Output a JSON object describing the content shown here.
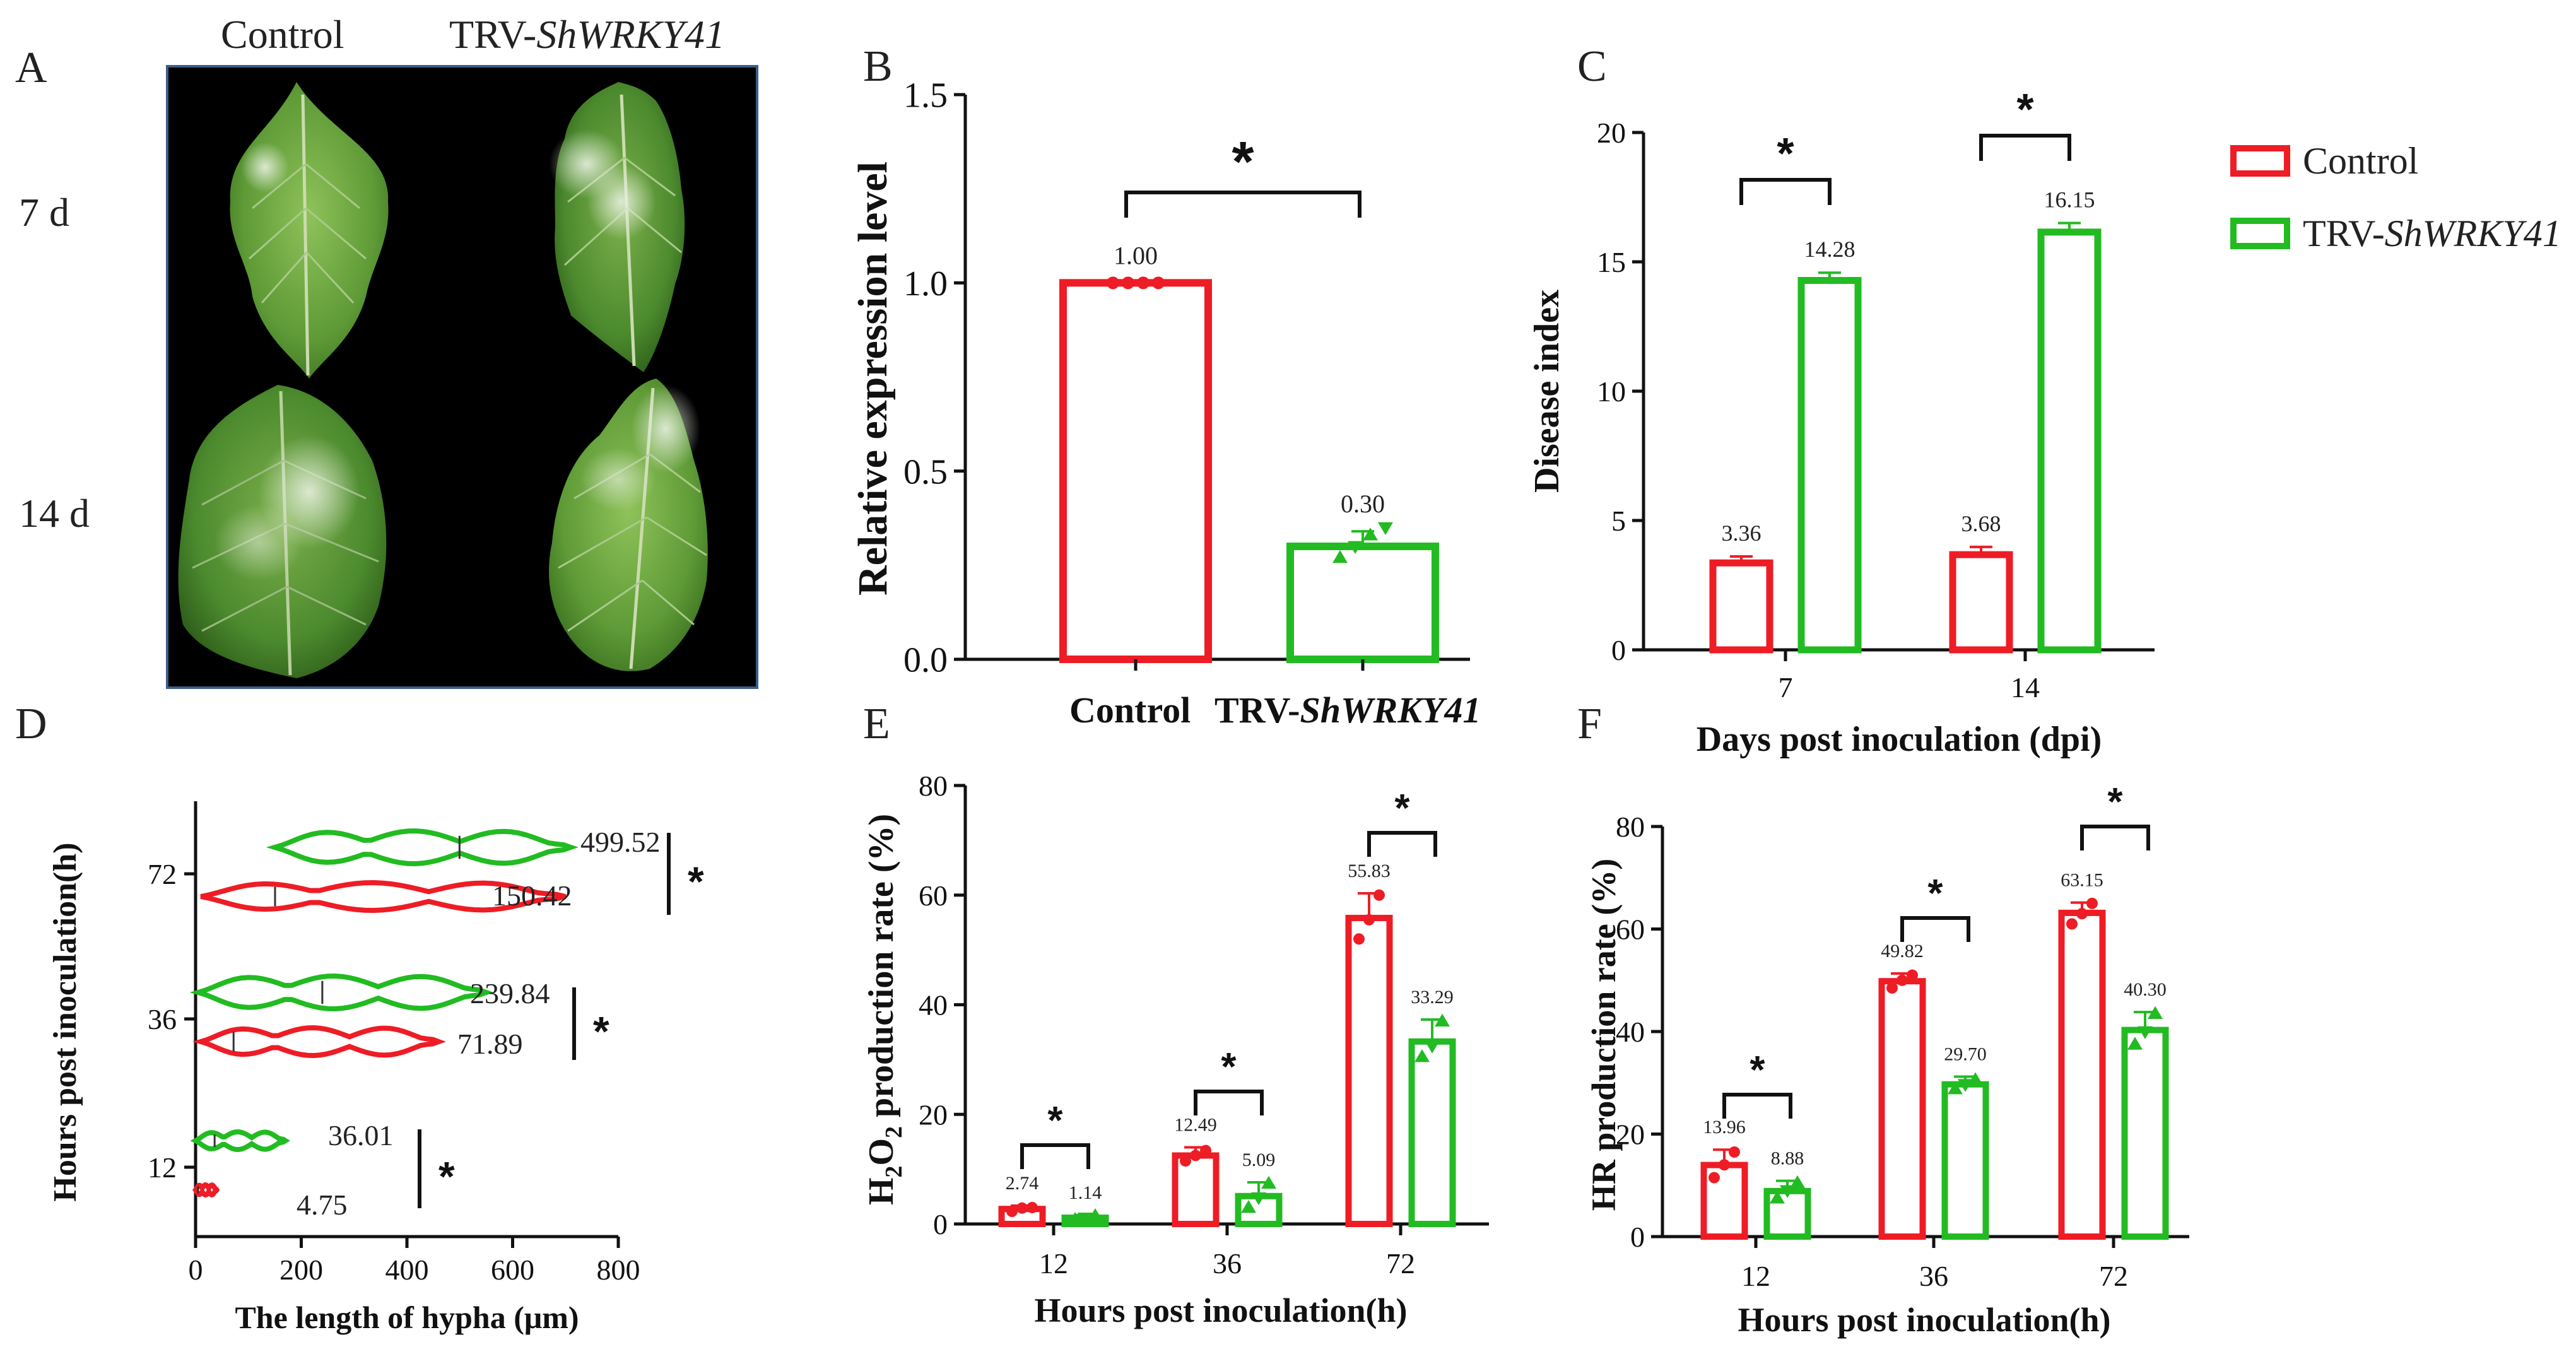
{
  "colors": {
    "control": "#ee1c25",
    "trv": "#22bb22",
    "axis": "#111111",
    "photo_bg": "#000000",
    "photo_border": "#3a5f8a"
  },
  "legend": {
    "items": [
      {
        "label": "Control",
        "italic_part": ""
      },
      {
        "label": "TRV-",
        "italic_part": "ShWRKY41"
      }
    ]
  },
  "panel_a": {
    "letter": "A",
    "col_labels": [
      "Control",
      "TRV-"
    ],
    "col_label_italic": "ShWRKY41",
    "row_labels": [
      "7 d",
      "14 d"
    ]
  },
  "panel_letters": {
    "b": "B",
    "c": "C",
    "d": "D",
    "e": "E",
    "f": "F"
  },
  "chart_data": [
    {
      "panel": "B",
      "type": "bar",
      "categories": [
        "Control",
        "TRV-ShWRKY41"
      ],
      "category_labels": [
        "Control",
        "TRV-",
        "ShWRKY41"
      ],
      "values": [
        1.0,
        0.3
      ],
      "value_labels": [
        "1.00",
        "0.30"
      ],
      "errors": [
        0.0,
        0.04
      ],
      "points": [
        [
          1.0,
          1.0,
          1.0,
          1.0
        ],
        [
          0.27,
          0.3,
          0.33,
          0.35
        ]
      ],
      "ylabel": "Relative expression level",
      "ylim": [
        0,
        1.5
      ],
      "yticks": [
        "0.0",
        "0.5",
        "1.0",
        "1.5"
      ],
      "significance": "*"
    },
    {
      "panel": "C",
      "type": "bar",
      "categories": [
        "7",
        "14"
      ],
      "series": [
        {
          "name": "Control",
          "values": [
            3.36,
            3.68
          ],
          "errors": [
            0.25,
            0.3
          ]
        },
        {
          "name": "TRV-ShWRKY41",
          "values": [
            14.28,
            16.15
          ],
          "errors": [
            0.3,
            0.35
          ]
        }
      ],
      "value_labels": [
        [
          "3.36",
          "3.68"
        ],
        [
          "14.28",
          "16.15"
        ]
      ],
      "xlabel": "Days post inoculation (dpi)",
      "ylabel": "Disease index",
      "ylim": [
        0,
        20
      ],
      "yticks": [
        "0",
        "5",
        "10",
        "15",
        "20"
      ],
      "significance": [
        "*",
        "*"
      ]
    },
    {
      "panel": "D",
      "type": "violin",
      "categories": [
        "12",
        "36",
        "72"
      ],
      "series": [
        {
          "name": "Control",
          "medians": [
            4.75,
            71.89,
            150.42
          ],
          "value_labels": [
            "4.75",
            "71.89",
            "150.42"
          ]
        },
        {
          "name": "TRV-ShWRKY41",
          "medians": [
            36.01,
            239.84,
            499.52
          ],
          "value_labels": [
            "36.01",
            "239.84",
            "499.52"
          ]
        }
      ],
      "xlabel": "The length of hypha (μm)",
      "ylabel": "Hours post inoculation(h)",
      "xlim": [
        0,
        800
      ],
      "xticks": [
        "0",
        "200",
        "400",
        "600",
        "800"
      ],
      "significance": [
        "*",
        "*",
        "*"
      ]
    },
    {
      "panel": "E",
      "type": "bar",
      "categories": [
        "12",
        "36",
        "72"
      ],
      "series": [
        {
          "name": "Control",
          "values": [
            2.74,
            12.49,
            55.83
          ],
          "errors": [
            0.6,
            1.5,
            4.5
          ],
          "points": [
            [
              2.3,
              2.9,
              3.0
            ],
            [
              11.5,
              12.5,
              13.4
            ],
            [
              52.0,
              55.5,
              60.0
            ]
          ]
        },
        {
          "name": "TRV-ShWRKY41",
          "values": [
            1.14,
            5.09,
            33.29
          ],
          "errors": [
            0.5,
            2.5,
            4.0
          ],
          "points": [
            [
              0.8,
              1.1,
              1.5
            ],
            [
              3.0,
              4.8,
              7.4
            ],
            [
              30.5,
              32.5,
              37.0
            ]
          ]
        }
      ],
      "value_labels": [
        [
          "2.74",
          "12.49",
          "55.83"
        ],
        [
          "1.14",
          "5.09",
          "33.29"
        ]
      ],
      "xlabel": "Hours post inoculation(h)",
      "ylabel_parts": [
        "H",
        "2",
        "O",
        "2",
        " production rate (%)"
      ],
      "ylim": [
        0,
        80
      ],
      "yticks": [
        "0",
        "20",
        "40",
        "60",
        "80"
      ],
      "significance": [
        "*",
        "*",
        "*"
      ]
    },
    {
      "panel": "F",
      "type": "bar",
      "categories": [
        "12",
        "36",
        "72"
      ],
      "series": [
        {
          "name": "Control",
          "values": [
            13.96,
            49.82,
            63.15
          ],
          "errors": [
            3.0,
            1.5,
            2.0
          ],
          "points": [
            [
              11.5,
              14.0,
              16.5
            ],
            [
              48.5,
              50.0,
              51.0
            ],
            [
              61.0,
              63.0,
              65.0
            ]
          ]
        },
        {
          "name": "TRV-ShWRKY41",
          "values": [
            8.88,
            29.7,
            40.3
          ],
          "errors": [
            2.0,
            1.5,
            3.5
          ],
          "points": [
            [
              7.5,
              9.0,
              10.5
            ],
            [
              28.8,
              29.7,
              30.6
            ],
            [
              37.5,
              40.0,
              43.5
            ]
          ]
        }
      ],
      "value_labels": [
        [
          "13.96",
          "49.82",
          "63.15"
        ],
        [
          "8.88",
          "29.70",
          "40.30"
        ]
      ],
      "xlabel": "Hours post inoculation(h)",
      "ylabel": "HR production rate (%)",
      "ylim": [
        0,
        80
      ],
      "yticks": [
        "0",
        "20",
        "40",
        "60",
        "80"
      ],
      "significance": [
        "*",
        "*",
        "*"
      ]
    }
  ]
}
